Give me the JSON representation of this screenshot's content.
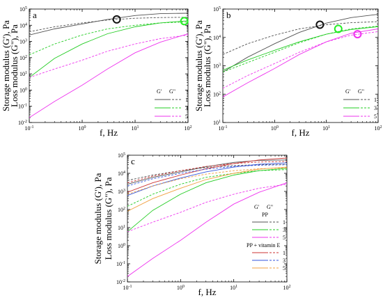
{
  "chart_data": [
    {
      "panel": "a",
      "type": "line",
      "xlabel": "f, Hz",
      "ylabel_line1": "Storage modulus (G'), Pa",
      "ylabel_line2": "Loss modulus (G\"), Pa",
      "xscale": "log",
      "yscale": "log",
      "xlim": [
        0.1,
        100
      ],
      "ylim": [
        0.01,
        100000
      ],
      "legend": {
        "placement": "bottom-right",
        "headers": [
          "G'",
          "G\""
        ],
        "labels": [
          "1",
          "3",
          "5"
        ]
      },
      "series": [
        {
          "name": "1",
          "modulus": "G'",
          "style": "solid",
          "color": "#505050",
          "x": [
            0.1,
            0.3,
            1,
            3,
            10,
            30,
            100
          ],
          "y": [
            2500,
            6000,
            12000,
            23000,
            40000,
            52000,
            55000
          ]
        },
        {
          "name": "1",
          "modulus": "G\"",
          "style": "dashed",
          "color": "#505050",
          "x": [
            0.1,
            0.3,
            1,
            3,
            10,
            30,
            100
          ],
          "y": [
            4000,
            8000,
            14000,
            21000,
            27000,
            30000,
            31000
          ]
        },
        {
          "name": "3",
          "modulus": "G'",
          "style": "solid",
          "color": "#22cc22",
          "x": [
            0.1,
            0.3,
            1,
            3,
            10,
            30,
            100
          ],
          "y": [
            6,
            90,
            700,
            3000,
            8000,
            14000,
            19000
          ]
        },
        {
          "name": "3",
          "modulus": "G\"",
          "style": "dashed",
          "color": "#22cc22",
          "x": [
            0.1,
            0.3,
            1,
            3,
            10,
            30,
            100
          ],
          "y": [
            150,
            700,
            2500,
            6000,
            10000,
            14000,
            16000
          ]
        },
        {
          "name": "5",
          "modulus": "G'",
          "style": "solid",
          "color": "#ee33ee",
          "x": [
            0.1,
            0.3,
            1,
            3,
            10,
            30,
            100
          ],
          "y": [
            0.02,
            0.2,
            2,
            20,
            200,
            900,
            3000
          ]
        },
        {
          "name": "5",
          "modulus": "G\"",
          "style": "dashed",
          "color": "#ee33ee",
          "x": [
            0.1,
            0.3,
            1,
            3,
            10,
            30,
            100
          ],
          "y": [
            6,
            20,
            70,
            250,
            700,
            1500,
            2500
          ]
        }
      ],
      "crossovers": [
        {
          "x": 4.5,
          "y": 23000,
          "color": "#111111"
        },
        {
          "x": 85,
          "y": 18000,
          "color": "#22ee22"
        }
      ]
    },
    {
      "panel": "b",
      "type": "line",
      "xlabel": "f, Hz",
      "ylabel_line1": "Storage modulus (G'), Pa",
      "ylabel_line2": "Loss modulus (G\"), Pa",
      "xscale": "log",
      "yscale": "log",
      "xlim": [
        0.1,
        100
      ],
      "ylim": [
        10,
        100000
      ],
      "legend": {
        "placement": "bottom-right",
        "headers": [
          "G'",
          "G\""
        ],
        "labels": [
          "1",
          "3",
          "5"
        ]
      },
      "series": [
        {
          "name": "1",
          "modulus": "G'",
          "style": "solid",
          "color": "#505050",
          "x": [
            0.1,
            0.3,
            1,
            3,
            10,
            30,
            100
          ],
          "y": [
            600,
            2000,
            6000,
            15000,
            32000,
            50000,
            65000
          ]
        },
        {
          "name": "1",
          "modulus": "G\"",
          "style": "dashed",
          "color": "#505050",
          "x": [
            0.1,
            0.3,
            1,
            3,
            10,
            30,
            100
          ],
          "y": [
            2500,
            6000,
            12000,
            20000,
            28000,
            33000,
            36000
          ]
        },
        {
          "name": "3",
          "modulus": "G'",
          "style": "solid",
          "color": "#22cc22",
          "x": [
            0.1,
            0.3,
            1,
            3,
            10,
            30,
            100
          ],
          "y": [
            700,
            1600,
            3500,
            7000,
            13000,
            19000,
            24000
          ]
        },
        {
          "name": "3",
          "modulus": "G\"",
          "style": "dashed",
          "color": "#22cc22",
          "x": [
            0.1,
            0.3,
            1,
            3,
            10,
            30,
            100
          ],
          "y": [
            600,
            1300,
            3000,
            6500,
            13000,
            20000,
            25000
          ]
        },
        {
          "name": "5",
          "modulus": "G'",
          "style": "solid",
          "color": "#ee33ee",
          "x": [
            0.1,
            0.3,
            1,
            3,
            10,
            30,
            100
          ],
          "y": [
            80,
            250,
            800,
            2500,
            7000,
            14000,
            20000
          ]
        },
        {
          "name": "5",
          "modulus": "G\"",
          "style": "dashed",
          "color": "#ee33ee",
          "x": [
            0.1,
            0.3,
            1,
            3,
            10,
            30,
            100
          ],
          "y": [
            160,
            450,
            1200,
            3000,
            7000,
            12000,
            16000
          ]
        }
      ],
      "crossovers": [
        {
          "x": 7.5,
          "y": 28000,
          "color": "#111111"
        },
        {
          "x": 17,
          "y": 20000,
          "color": "#22ee22"
        },
        {
          "x": 40,
          "y": 13000,
          "color": "#ee33ee"
        }
      ]
    },
    {
      "panel": "c",
      "type": "line",
      "xlabel": "f, Hz",
      "ylabel_line1": "Storage modulus (G'), Pa",
      "ylabel_line2": "Loss modulus (G\"), Pa",
      "xscale": "log",
      "yscale": "log",
      "xlim": [
        0.1,
        100
      ],
      "ylim": [
        0.01,
        100000
      ],
      "legend": {
        "placement": "bottom-right",
        "headers": [
          "G'",
          "G\""
        ],
        "groups": [
          {
            "title": "PP",
            "labels": [
              "1",
              "3",
              "5"
            ]
          },
          {
            "title": "PP + vitamin E",
            "labels": [
              "1",
              "3",
              "5"
            ]
          }
        ]
      },
      "series": [
        {
          "name": "1",
          "group": "PP",
          "modulus": "G'",
          "style": "solid",
          "color": "#505050",
          "x": [
            0.1,
            0.3,
            1,
            3,
            10,
            30,
            100
          ],
          "y": [
            2500,
            6000,
            12000,
            23000,
            40000,
            52000,
            55000
          ]
        },
        {
          "name": "1",
          "group": "PP",
          "modulus": "G\"",
          "style": "dashed",
          "color": "#505050",
          "x": [
            0.1,
            0.3,
            1,
            3,
            10,
            30,
            100
          ],
          "y": [
            4000,
            8000,
            14000,
            21000,
            27000,
            30000,
            31000
          ]
        },
        {
          "name": "3",
          "group": "PP",
          "modulus": "G'",
          "style": "solid",
          "color": "#22cc22",
          "x": [
            0.1,
            0.3,
            1,
            3,
            10,
            30,
            100
          ],
          "y": [
            6,
            90,
            700,
            3000,
            8000,
            14000,
            19000
          ]
        },
        {
          "name": "3",
          "group": "PP",
          "modulus": "G\"",
          "style": "dashed",
          "color": "#22cc22",
          "x": [
            0.1,
            0.3,
            1,
            3,
            10,
            30,
            100
          ],
          "y": [
            150,
            700,
            2500,
            6000,
            10000,
            14000,
            16000
          ]
        },
        {
          "name": "5",
          "group": "PP",
          "modulus": "G'",
          "style": "solid",
          "color": "#ee33ee",
          "x": [
            0.1,
            0.3,
            1,
            3,
            10,
            30,
            100
          ],
          "y": [
            0.02,
            0.2,
            2,
            20,
            200,
            900,
            3000
          ]
        },
        {
          "name": "5",
          "group": "PP",
          "modulus": "G\"",
          "style": "dashed",
          "color": "#ee33ee",
          "x": [
            0.1,
            0.3,
            1,
            3,
            10,
            30,
            100
          ],
          "y": [
            6,
            20,
            70,
            250,
            700,
            1500,
            2500
          ]
        },
        {
          "name": "1",
          "group": "PP + vitamin E",
          "modulus": "G'",
          "style": "solid",
          "color": "#cc3333",
          "x": [
            0.1,
            0.3,
            1,
            3,
            10,
            30,
            100
          ],
          "y": [
            900,
            3000,
            8000,
            18000,
            35000,
            55000,
            70000
          ]
        },
        {
          "name": "1",
          "group": "PP + vitamin E",
          "modulus": "G\"",
          "style": "dashed",
          "color": "#cc3333",
          "x": [
            0.1,
            0.3,
            1,
            3,
            10,
            30,
            100
          ],
          "y": [
            3000,
            7000,
            14000,
            24000,
            35000,
            42000,
            45000
          ]
        },
        {
          "name": "3",
          "group": "PP + vitamin E",
          "modulus": "G'",
          "style": "solid",
          "color": "#3355dd",
          "x": [
            0.1,
            0.3,
            1,
            3,
            10,
            30,
            100
          ],
          "y": [
            600,
            2000,
            5500,
            12000,
            22000,
            32000,
            38000
          ]
        },
        {
          "name": "3",
          "group": "PP + vitamin E",
          "modulus": "G\"",
          "style": "dashed",
          "color": "#3355dd",
          "x": [
            0.1,
            0.3,
            1,
            3,
            10,
            30,
            100
          ],
          "y": [
            2000,
            5000,
            10000,
            17000,
            24000,
            28000,
            30000
          ]
        },
        {
          "name": "5",
          "group": "PP + vitamin E",
          "modulus": "G'",
          "style": "solid",
          "color": "#f0a040",
          "x": [
            0.1,
            0.3,
            1,
            3,
            10,
            30,
            100
          ],
          "y": [
            80,
            400,
            1500,
            4500,
            10000,
            17000,
            22000
          ]
        },
        {
          "name": "5",
          "group": "PP + vitamin E",
          "modulus": "G\"",
          "style": "dashed",
          "color": "#f0a040",
          "x": [
            0.1,
            0.3,
            1,
            3,
            10,
            30,
            100
          ],
          "y": [
            700,
            2000,
            5000,
            9000,
            14000,
            18000,
            20000
          ]
        }
      ]
    }
  ]
}
